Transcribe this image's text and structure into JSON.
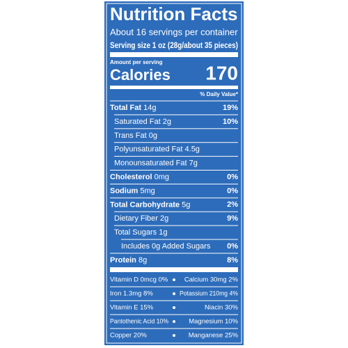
{
  "label": {
    "title": "Nutrition Facts",
    "servings": "About 16 servings per container",
    "serving_size": {
      "label": "Serving size",
      "value": "1 oz (28g/about 35 pieces)"
    },
    "amount_per_serving": "Amount per serving",
    "calories": {
      "label": "Calories",
      "value": "170"
    },
    "dv_header": "% Daily Value*",
    "nutrients": [
      {
        "name": "Total Fat",
        "amount": "14g",
        "dv": "19%",
        "bold": true,
        "indent": 0
      },
      {
        "name": "Saturated Fat",
        "amount": "2g",
        "dv": "10%",
        "bold": false,
        "indent": 1
      },
      {
        "name": "Trans Fat",
        "amount": "0g",
        "bold": false,
        "indent": 1
      },
      {
        "name": "Polyunsaturated Fat",
        "amount": "4.5g",
        "bold": false,
        "indent": 1
      },
      {
        "name": "Monounsaturated Fat",
        "amount": "7g",
        "bold": false,
        "indent": 1
      },
      {
        "name": "Cholesterol",
        "amount": "0mg",
        "dv": "0%",
        "bold": true,
        "indent": 0
      },
      {
        "name": "Sodium",
        "amount": "5mg",
        "dv": "0%",
        "bold": true,
        "indent": 0
      },
      {
        "name": "Total Carbohydrate",
        "amount": "5g",
        "dv": "2%",
        "bold": true,
        "indent": 0
      },
      {
        "name": "Dietary Fiber",
        "amount": "2g",
        "dv": "9%",
        "bold": false,
        "indent": 1
      },
      {
        "name": "Total Sugars",
        "amount": "1g",
        "bold": false,
        "indent": 1
      },
      {
        "name": "Includes 0g Added Sugars",
        "dv": "0%",
        "bold": false,
        "indent": 2
      },
      {
        "name": "Protein",
        "amount": "8g",
        "dv": "8%",
        "bold": true,
        "indent": 0
      }
    ],
    "vitamins": [
      [
        "Vitamin D 0mcg 0%",
        "Calcium 30mg 2%"
      ],
      [
        "Iron 1.3mg 8%",
        "Potassium 210mg 4%"
      ],
      [
        "Vitamin E 15%",
        "Niacin 30%"
      ],
      [
        "Pantothenic Acid 10%",
        "Magnesium 10%"
      ],
      [
        "Copper 20%",
        "Manganese 25%"
      ]
    ]
  }
}
